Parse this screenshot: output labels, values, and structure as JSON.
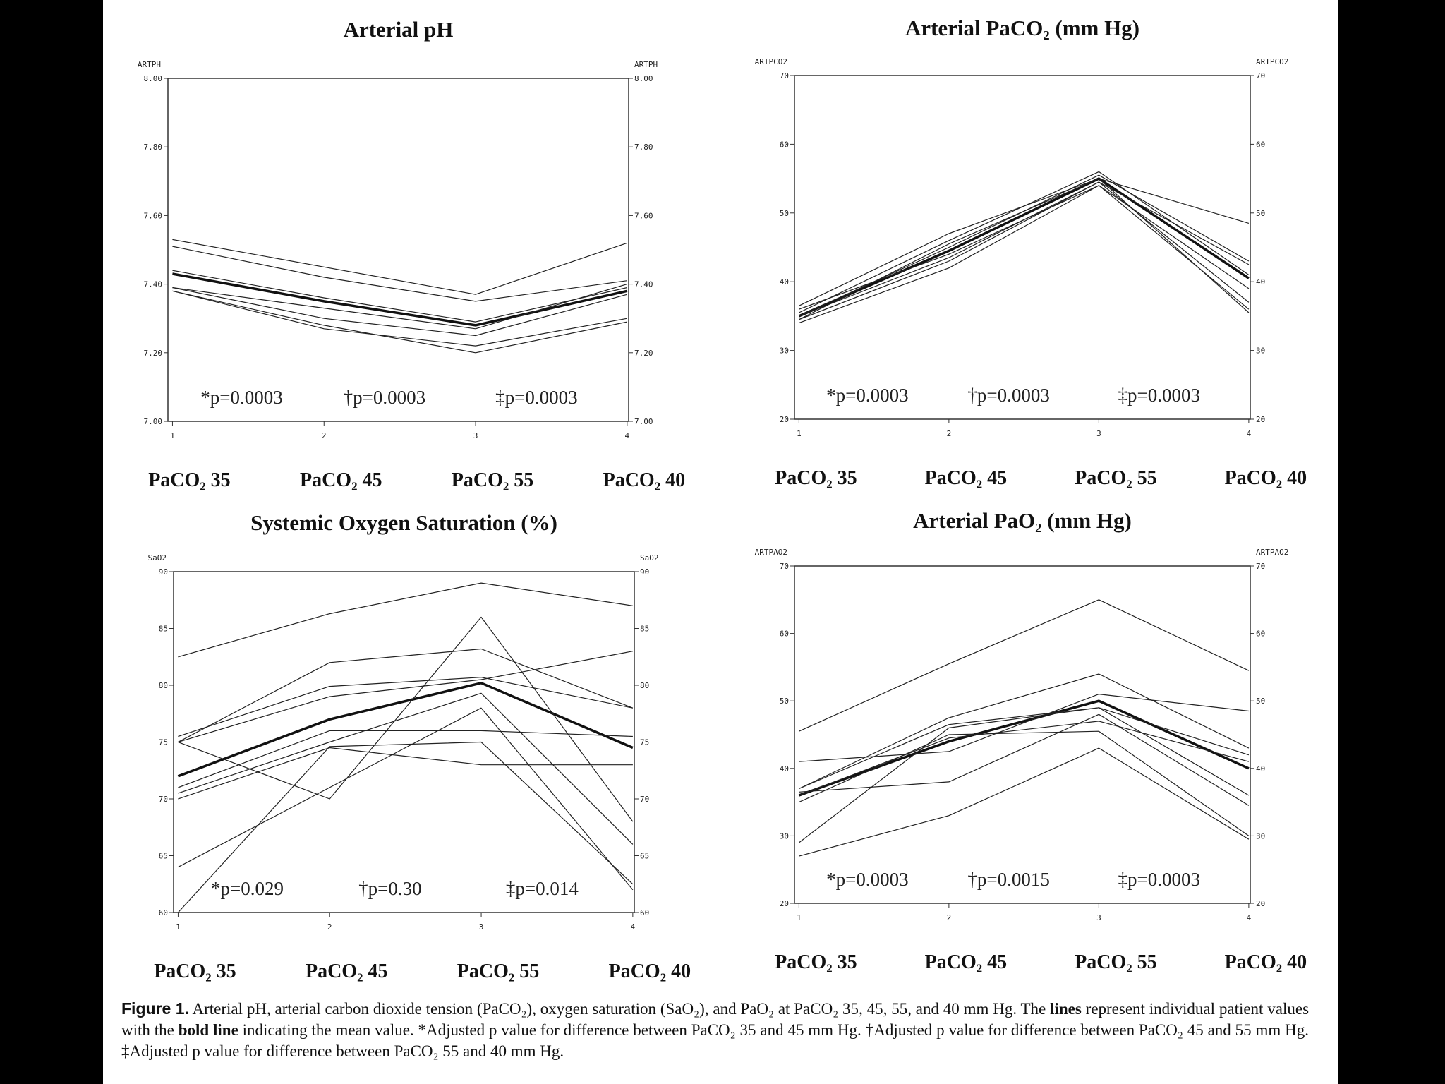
{
  "chart_data": [
    {
      "type": "line",
      "title": "Arterial pH",
      "y_label": "ARTPH",
      "x": [
        1,
        2,
        3,
        4
      ],
      "xlim": [
        0.97,
        4.01
      ],
      "xticks": [
        1,
        2,
        3,
        4
      ],
      "categories": [
        "PaCO₂ 35",
        "PaCO₂ 45",
        "PaCO₂ 55",
        "PaCO₂ 40"
      ],
      "ylim": [
        7.0,
        8.0
      ],
      "yticks": [
        {
          "value": 7.0,
          "label": "7.00"
        },
        {
          "value": 7.2,
          "label": "7.20"
        },
        {
          "value": 7.4,
          "label": "7.40"
        },
        {
          "value": 7.6,
          "label": "7.60"
        },
        {
          "value": 7.8,
          "label": "7.80"
        },
        {
          "value": 8.0,
          "label": "8.00"
        }
      ],
      "annotations": [
        "*p=0.0003",
        "†p=0.0003",
        "‡p=0.0003"
      ],
      "series": [
        {
          "color": "#111111",
          "line_width": 3.5,
          "values": [
            7.43,
            7.35,
            7.28,
            7.38
          ]
        },
        {
          "color": "#222222",
          "line_width": 1.2,
          "values": [
            7.53,
            7.45,
            7.37,
            7.52
          ]
        },
        {
          "color": "#222222",
          "line_width": 1.2,
          "values": [
            7.51,
            7.42,
            7.35,
            7.41
          ]
        },
        {
          "color": "#222222",
          "line_width": 1.2,
          "values": [
            7.44,
            7.36,
            7.29,
            7.39
          ]
        },
        {
          "color": "#222222",
          "line_width": 1.2,
          "values": [
            7.39,
            7.33,
            7.27,
            7.4
          ]
        },
        {
          "color": "#222222",
          "line_width": 1.2,
          "values": [
            7.39,
            7.3,
            7.25,
            7.37
          ]
        },
        {
          "color": "#222222",
          "line_width": 1.2,
          "values": [
            7.38,
            7.27,
            7.22,
            7.3
          ]
        },
        {
          "color": "#222222",
          "line_width": 1.2,
          "values": [
            7.38,
            7.28,
            7.2,
            7.29
          ]
        }
      ]
    },
    {
      "type": "line",
      "title": "Arterial PaCO₂ (mm Hg)",
      "y_label": "ARTPCO2",
      "x": [
        1,
        2,
        3,
        4
      ],
      "xlim": [
        0.97,
        4.01
      ],
      "xticks": [
        1,
        2,
        3,
        4
      ],
      "categories": [
        "PaCO₂ 35",
        "PaCO₂ 45",
        "PaCO₂ 55",
        "PaCO₂ 40"
      ],
      "ylim": [
        20,
        70
      ],
      "yticks": [
        20,
        30,
        40,
        50,
        60,
        70
      ],
      "annotations": [
        "*p=0.0003",
        "†p=0.0003",
        "‡p=0.0003"
      ],
      "series": [
        {
          "color": "#111111",
          "line_width": 3.5,
          "values": [
            35,
            44.5,
            55,
            40.5
          ]
        },
        {
          "color": "#222222",
          "line_width": 1.2,
          "values": [
            36.5,
            47,
            55,
            48.5
          ]
        },
        {
          "color": "#222222",
          "line_width": 1.2,
          "values": [
            34,
            42,
            54,
            36
          ]
        },
        {
          "color": "#222222",
          "line_width": 1.2,
          "values": [
            35.5,
            46,
            56,
            41
          ]
        },
        {
          "color": "#222222",
          "line_width": 1.2,
          "values": [
            34.5,
            43,
            54.5,
            42.5
          ]
        },
        {
          "color": "#222222",
          "line_width": 1.2,
          "values": [
            35,
            45,
            55.5,
            43
          ]
        },
        {
          "color": "#222222",
          "line_width": 1.2,
          "values": [
            36,
            44,
            54,
            39
          ]
        },
        {
          "color": "#222222",
          "line_width": 1.2,
          "values": [
            34.5,
            45.5,
            55,
            35.5
          ]
        },
        {
          "color": "#222222",
          "line_width": 1.2,
          "values": [
            35,
            43.5,
            54.5,
            37
          ]
        }
      ]
    },
    {
      "type": "line",
      "title": "Systemic Oxygen Saturation (%)",
      "y_label": "SaO2",
      "x": [
        1,
        2,
        3,
        4
      ],
      "xlim": [
        0.97,
        4.01
      ],
      "xticks": [
        1,
        2,
        3,
        4
      ],
      "categories": [
        "PaCO₂ 35",
        "PaCO₂ 45",
        "PaCO₂ 55",
        "PaCO₂ 40"
      ],
      "ylim": [
        60,
        90
      ],
      "yticks": [
        60,
        65,
        70,
        75,
        80,
        85,
        90
      ],
      "annotations": [
        "*p=0.029",
        "†p=0.30",
        "‡p=0.014"
      ],
      "series": [
        {
          "color": "#111111",
          "line_width": 3.5,
          "values": [
            72,
            77,
            80.2,
            74.5
          ]
        },
        {
          "color": "#222222",
          "line_width": 1.2,
          "values": [
            82.5,
            86.3,
            89,
            87
          ]
        },
        {
          "color": "#222222",
          "line_width": 1.2,
          "values": [
            75,
            82,
            83.2,
            78
          ]
        },
        {
          "color": "#222222",
          "line_width": 1.2,
          "values": [
            75.5,
            79.9,
            80.7,
            78
          ]
        },
        {
          "color": "#222222",
          "line_width": 1.2,
          "values": [
            75,
            70,
            86,
            68
          ]
        },
        {
          "color": "#222222",
          "line_width": 1.2,
          "values": [
            70.5,
            75,
            79.3,
            66
          ]
        },
        {
          "color": "#222222",
          "line_width": 1.2,
          "values": [
            71,
            76,
            76,
            75.5
          ]
        },
        {
          "color": "#222222",
          "line_width": 1.2,
          "values": [
            64,
            71,
            78,
            62
          ]
        },
        {
          "color": "#222222",
          "line_width": 1.2,
          "values": [
            60,
            74.6,
            75,
            62.5
          ]
        },
        {
          "color": "#222222",
          "line_width": 1.2,
          "values": [
            70,
            74.5,
            73,
            73
          ]
        },
        {
          "color": "#222222",
          "line_width": 1.2,
          "values": [
            75,
            79,
            80.5,
            83
          ]
        }
      ]
    },
    {
      "type": "line",
      "title": "Arterial PaO₂ (mm Hg)",
      "y_label": "ARTPAO2",
      "x": [
        1,
        2,
        3,
        4
      ],
      "xlim": [
        0.97,
        4.01
      ],
      "xticks": [
        1,
        2,
        3,
        4
      ],
      "categories": [
        "PaCO₂ 35",
        "PaCO₂ 45",
        "PaCO₂ 55",
        "PaCO₂ 40"
      ],
      "ylim": [
        20,
        70
      ],
      "yticks": [
        20,
        30,
        40,
        50,
        60,
        70
      ],
      "annotations": [
        "*p=0.0003",
        "†p=0.0015",
        "‡p=0.0003"
      ],
      "series": [
        {
          "color": "#111111",
          "line_width": 3.5,
          "values": [
            36,
            44,
            50,
            40
          ]
        },
        {
          "color": "#222222",
          "line_width": 1.2,
          "values": [
            45.5,
            55.5,
            65,
            54.5
          ]
        },
        {
          "color": "#222222",
          "line_width": 1.2,
          "values": [
            37,
            47.5,
            54,
            43
          ]
        },
        {
          "color": "#222222",
          "line_width": 1.2,
          "values": [
            41,
            42.5,
            51,
            48.5
          ]
        },
        {
          "color": "#222222",
          "line_width": 1.2,
          "values": [
            29,
            46,
            49,
            36
          ]
        },
        {
          "color": "#222222",
          "line_width": 1.2,
          "values": [
            27,
            33,
            43,
            29.5
          ]
        },
        {
          "color": "#222222",
          "line_width": 1.2,
          "values": [
            36.5,
            38,
            48,
            34.5
          ]
        },
        {
          "color": "#222222",
          "line_width": 1.2,
          "values": [
            35,
            45,
            45.5,
            30
          ]
        },
        {
          "color": "#222222",
          "line_width": 1.2,
          "values": [
            37,
            46.5,
            49,
            42
          ]
        },
        {
          "color": "#222222",
          "line_width": 1.2,
          "values": [
            36,
            44.5,
            47,
            41
          ]
        }
      ]
    }
  ],
  "caption": [
    {
      "text": "Figure 1.",
      "bold": true,
      "label": true
    },
    {
      "text": "Arterial pH, arterial carbon dioxide tension (PaCO₂), oxygen saturation (SaO₂), and PaO₂ at PaCO₂ 35, 45, 55, and 40 mm Hg. The",
      "bold": false
    },
    {
      "text": "lines",
      "bold": true
    },
    {
      "text": "represent individual patient values with the",
      "bold": false
    },
    {
      "text": "bold line",
      "bold": true
    },
    {
      "text": "indicating the mean value. *Adjusted p value for difference between PaCO₂ 35 and 45 mm Hg. †Adjusted p value for difference between PaCO₂ 45 and 55 mm Hg. ‡Adjusted p value for difference between PaCO₂ 55 and 40 mm Hg.",
      "bold": false
    }
  ]
}
